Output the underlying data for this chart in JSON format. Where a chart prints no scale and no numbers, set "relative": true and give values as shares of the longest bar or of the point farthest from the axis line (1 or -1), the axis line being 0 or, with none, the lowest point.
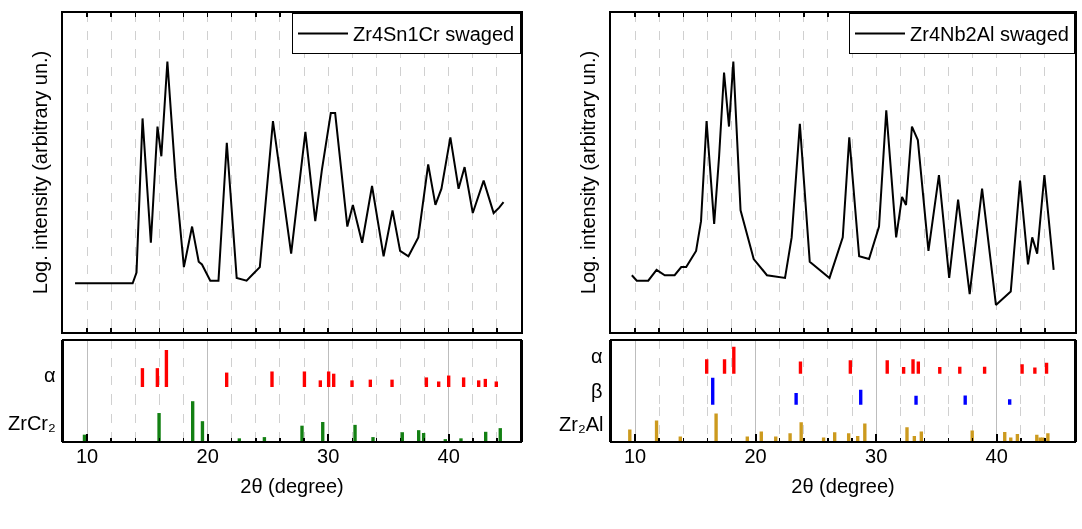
{
  "chart_data": [
    {
      "type": "line",
      "relative": true,
      "ylabel": "Log. intensity (arbitrary un.)",
      "legend": "top right",
      "grid": "x",
      "tick_labels": false,
      "marker": "none",
      "line_style": "solid",
      "xlim": [
        8,
        46
      ],
      "xticks": [
        {
          "value": 10,
          "label": null
        },
        {
          "value": 12,
          "label": null
        },
        {
          "value": 14,
          "label": null
        },
        {
          "value": 16,
          "label": null
        },
        {
          "value": 18,
          "label": null
        },
        {
          "value": 20,
          "label": null
        },
        {
          "value": 22,
          "label": null
        },
        {
          "value": 24,
          "label": null
        },
        {
          "value": 26,
          "label": null
        },
        {
          "value": 28,
          "label": null
        },
        {
          "value": 30,
          "label": null
        },
        {
          "value": 32,
          "label": null
        },
        {
          "value": 34,
          "label": null
        },
        {
          "value": 36,
          "label": null
        },
        {
          "value": 38,
          "label": null
        },
        {
          "value": 40,
          "label": null
        },
        {
          "value": 42,
          "label": null
        },
        {
          "value": 44,
          "label": null
        }
      ],
      "series": [
        {
          "name": "Zr4Sn1Cr swaged",
          "color": "#000000",
          "x": [
            9.0,
            13.78,
            14.1,
            14.6,
            15.29,
            15.84,
            16.16,
            16.66,
            17.34,
            18.03,
            18.71,
            19.26,
            19.53,
            20.22,
            20.9,
            21.59,
            22.41,
            23.23,
            24.33,
            25.42,
            26.93,
            28.11,
            28.93,
            29.48,
            30.22,
            30.58,
            31.59,
            32.05,
            32.82,
            33.64,
            34.6,
            35.34,
            35.97,
            36.66,
            37.48,
            38.3,
            38.9,
            39.4,
            40.14,
            40.82,
            41.32,
            42.0,
            42.9,
            43.73,
            44.19,
            44.55
          ],
          "values": [
            0.18,
            0.18,
            0.22,
            0.79,
            0.33,
            0.76,
            0.65,
            1.0,
            0.57,
            0.24,
            0.39,
            0.26,
            0.25,
            0.19,
            0.19,
            0.7,
            0.2,
            0.19,
            0.24,
            0.78,
            0.29,
            0.74,
            0.41,
            0.6,
            0.81,
            0.81,
            0.39,
            0.47,
            0.33,
            0.54,
            0.28,
            0.45,
            0.3,
            0.28,
            0.35,
            0.62,
            0.47,
            0.53,
            0.72,
            0.53,
            0.61,
            0.44,
            0.56,
            0.44,
            0.46,
            0.48
          ]
        }
      ]
    },
    {
      "type": "bar",
      "relative": true,
      "ylabel": "α",
      "grid": "x",
      "tick_labels": false,
      "xlim": [
        8,
        46
      ],
      "xticks": [
        10,
        {
          "value": 12,
          "label": null
        },
        {
          "value": 14,
          "label": null
        },
        {
          "value": 16,
          "label": null
        },
        {
          "value": 18,
          "label": null
        },
        20,
        {
          "value": 22,
          "label": null
        },
        {
          "value": 24,
          "label": null
        },
        {
          "value": 26,
          "label": null
        },
        {
          "value": 28,
          "label": null
        },
        30,
        {
          "value": 32,
          "label": null
        },
        {
          "value": 34,
          "label": null
        },
        {
          "value": 36,
          "label": null
        },
        {
          "value": 38,
          "label": null
        },
        40,
        {
          "value": 42,
          "label": null
        },
        {
          "value": 44,
          "label": null
        }
      ],
      "series": [
        {
          "color": "#ff0000",
          "x": [
            14.59,
            15.83,
            16.58,
            21.58,
            25.34,
            28.03,
            29.35,
            30.04,
            30.46,
            31.98,
            33.5,
            35.3,
            38.15,
            39.17,
            40.0,
            41.24,
            42.49,
            43.04,
            43.95
          ],
          "values": [
            0.51,
            0.51,
            1,
            0.39,
            0.42,
            0.42,
            0.18,
            0.42,
            0.36,
            0.18,
            0.2,
            0.2,
            0.26,
            0.15,
            0.31,
            0.26,
            0.18,
            0.22,
            0.15
          ]
        }
      ]
    },
    {
      "type": "bar",
      "relative": true,
      "ylabel": "ZrCr₂",
      "xlabel": "2θ (degree)",
      "grid": "x",
      "tick_labels": "x",
      "xlim": [
        8,
        46
      ],
      "xticks": [
        10,
        {
          "value": 12,
          "label": null
        },
        {
          "value": 14,
          "label": null
        },
        {
          "value": 16,
          "label": null
        },
        {
          "value": 18,
          "label": null
        },
        20,
        {
          "value": 22,
          "label": null
        },
        {
          "value": 24,
          "label": null
        },
        {
          "value": 26,
          "label": null
        },
        {
          "value": 28,
          "label": null
        },
        30,
        {
          "value": 32,
          "label": null
        },
        {
          "value": 34,
          "label": null
        },
        {
          "value": 36,
          "label": null
        },
        {
          "value": 38,
          "label": null
        },
        40,
        {
          "value": 42,
          "label": null
        },
        {
          "value": 44,
          "label": null
        }
      ],
      "series": [
        {
          "color": "#138013",
          "x": [
            9.78,
            15.97,
            18.76,
            19.57,
            22.63,
            24.71,
            27.83,
            29.55,
            32.23,
            33.72,
            36.15,
            37.51,
            37.92,
            39.72,
            41.02,
            43.07,
            44.28
          ],
          "values": [
            0.18,
            0.71,
            1,
            0.51,
            0.09,
            0.12,
            0.4,
            0.49,
            0.42,
            0.12,
            0.24,
            0.29,
            0.22,
            0.07,
            0.09,
            0.25,
            0.34
          ]
        }
      ]
    },
    {
      "type": "line",
      "relative": true,
      "ylabel": "Log. intensity (arbitrary un.)",
      "legend": "top right",
      "grid": "x",
      "tick_labels": false,
      "marker": "none",
      "line_style": "solid",
      "xlim": [
        8,
        46.5
      ],
      "xticks": [
        {
          "value": 10,
          "label": null
        },
        {
          "value": 12,
          "label": null
        },
        {
          "value": 14,
          "label": null
        },
        {
          "value": 16,
          "label": null
        },
        {
          "value": 18,
          "label": null
        },
        {
          "value": 20,
          "label": null
        },
        {
          "value": 22,
          "label": null
        },
        {
          "value": 24,
          "label": null
        },
        {
          "value": 26,
          "label": null
        },
        {
          "value": 28,
          "label": null
        },
        {
          "value": 30,
          "label": null
        },
        {
          "value": 32,
          "label": null
        },
        {
          "value": 34,
          "label": null
        },
        {
          "value": 36,
          "label": null
        },
        {
          "value": 38,
          "label": null
        },
        {
          "value": 40,
          "label": null
        },
        {
          "value": 42,
          "label": null
        },
        {
          "value": 44,
          "label": null
        }
      ],
      "series": [
        {
          "name": "Zr4Nb2Al swaged",
          "color": "#000000",
          "x": [
            9.73,
            10.14,
            11.09,
            11.78,
            12.46,
            13.28,
            13.83,
            14.24,
            15.06,
            15.47,
            15.93,
            16.56,
            16.97,
            17.38,
            17.79,
            18.15,
            18.75,
            19.84,
            20.94,
            22.44,
            22.99,
            23.67,
            24.49,
            26.13,
            27.23,
            27.77,
            28.59,
            29.41,
            30.24,
            30.84,
            31.66,
            32.15,
            32.48,
            32.97,
            33.46,
            34.34,
            35.21,
            36.06,
            36.8,
            37.76,
            38.79,
            39.94,
            41.17,
            41.94,
            42.6,
            42.95,
            43.36,
            43.96,
            44.73
          ],
          "values": [
            0.21,
            0.19,
            0.19,
            0.23,
            0.21,
            0.21,
            0.24,
            0.24,
            0.3,
            0.41,
            0.78,
            0.4,
            0.65,
            0.96,
            0.76,
            1.0,
            0.45,
            0.27,
            0.21,
            0.2,
            0.35,
            0.77,
            0.26,
            0.2,
            0.35,
            0.72,
            0.28,
            0.27,
            0.39,
            0.82,
            0.35,
            0.5,
            0.47,
            0.76,
            0.71,
            0.3,
            0.58,
            0.2,
            0.49,
            0.14,
            0.53,
            0.1,
            0.15,
            0.56,
            0.25,
            0.35,
            0.29,
            0.58,
            0.23
          ]
        }
      ]
    },
    {
      "type": "bar",
      "relative": true,
      "ylabel": "α",
      "grid": "x",
      "tick_labels": false,
      "xlim": [
        8,
        46.5
      ],
      "xticks": [
        10,
        {
          "value": 12,
          "label": null
        },
        {
          "value": 14,
          "label": null
        },
        {
          "value": 16,
          "label": null
        },
        {
          "value": 18,
          "label": null
        },
        20,
        {
          "value": 22,
          "label": null
        },
        {
          "value": 24,
          "label": null
        },
        {
          "value": 26,
          "label": null
        },
        {
          "value": 28,
          "label": null
        },
        30,
        {
          "value": 32,
          "label": null
        },
        {
          "value": 34,
          "label": null
        },
        {
          "value": 36,
          "label": null
        },
        {
          "value": 38,
          "label": null
        },
        40,
        {
          "value": 42,
          "label": null
        },
        {
          "value": 44,
          "label": null
        }
      ],
      "series": [
        {
          "color": "#ff0000",
          "x": [
            15.94,
            17.42,
            18.19,
            23.72,
            27.86,
            30.92,
            32.28,
            33.06,
            33.5,
            35.28,
            36.94,
            39.0,
            42.11,
            43.17,
            44.14
          ],
          "values": [
            0.54,
            0.54,
            1,
            0.45,
            0.5,
            0.5,
            0.25,
            0.54,
            0.45,
            0.25,
            0.26,
            0.26,
            0.35,
            0.23,
            0.41
          ]
        }
      ]
    },
    {
      "type": "bar",
      "relative": true,
      "ylabel": "β",
      "grid": "x",
      "tick_labels": false,
      "xlim": [
        8,
        46.5
      ],
      "xticks": [
        10,
        {
          "value": 12,
          "label": null
        },
        {
          "value": 14,
          "label": null
        },
        {
          "value": 16,
          "label": null
        },
        {
          "value": 18,
          "label": null
        },
        20,
        {
          "value": 22,
          "label": null
        },
        {
          "value": 24,
          "label": null
        },
        {
          "value": 26,
          "label": null
        },
        {
          "value": 28,
          "label": null
        },
        30,
        {
          "value": 32,
          "label": null
        },
        {
          "value": 34,
          "label": null
        },
        {
          "value": 36,
          "label": null
        },
        {
          "value": 38,
          "label": null
        },
        40,
        {
          "value": 42,
          "label": null
        },
        {
          "value": 44,
          "label": null
        }
      ],
      "series": [
        {
          "color": "#0000ff",
          "x": [
            16.44,
            23.36,
            28.72,
            33.31,
            37.39,
            41.08
          ],
          "values": [
            1,
            0.44,
            0.56,
            0.34,
            0.35,
            0.21
          ]
        }
      ]
    },
    {
      "type": "bar",
      "relative": true,
      "ylabel": "Zr₂Al",
      "xlabel": "2θ (degree)",
      "grid": "x",
      "tick_labels": "x",
      "xlim": [
        8,
        46.5
      ],
      "xticks": [
        10,
        {
          "value": 12,
          "label": null
        },
        {
          "value": 14,
          "label": null
        },
        {
          "value": 16,
          "label": null
        },
        {
          "value": 18,
          "label": null
        },
        20,
        {
          "value": 22,
          "label": null
        },
        {
          "value": 24,
          "label": null
        },
        {
          "value": 26,
          "label": null
        },
        {
          "value": 28,
          "label": null
        },
        30,
        {
          "value": 32,
          "label": null
        },
        {
          "value": 34,
          "label": null
        },
        {
          "value": 36,
          "label": null
        },
        {
          "value": 38,
          "label": null
        },
        40,
        {
          "value": 42,
          "label": null
        },
        {
          "value": 44,
          "label": null
        }
      ],
      "series": [
        {
          "color": "#cc9a1e",
          "x": [
            9.56,
            11.78,
            13.75,
            16.72,
            19.31,
            20.47,
            21.67,
            22.86,
            23.78,
            25.64,
            26.56,
            27.72,
            28.47,
            29.06,
            32.56,
            33.17,
            33.75,
            37.97,
            40.67,
            41.17,
            41.72,
            43.33,
            43.61,
            43.83,
            44.25
          ],
          "values": [
            0.44,
            0.75,
            0.19,
            1,
            0.19,
            0.37,
            0.19,
            0.31,
            0.69,
            0.16,
            0.34,
            0.31,
            0.21,
            0.65,
            0.52,
            0.21,
            0.37,
            0.4,
            0.35,
            0.16,
            0.28,
            0.25,
            0.16,
            0.16,
            0.31
          ]
        }
      ]
    }
  ]
}
